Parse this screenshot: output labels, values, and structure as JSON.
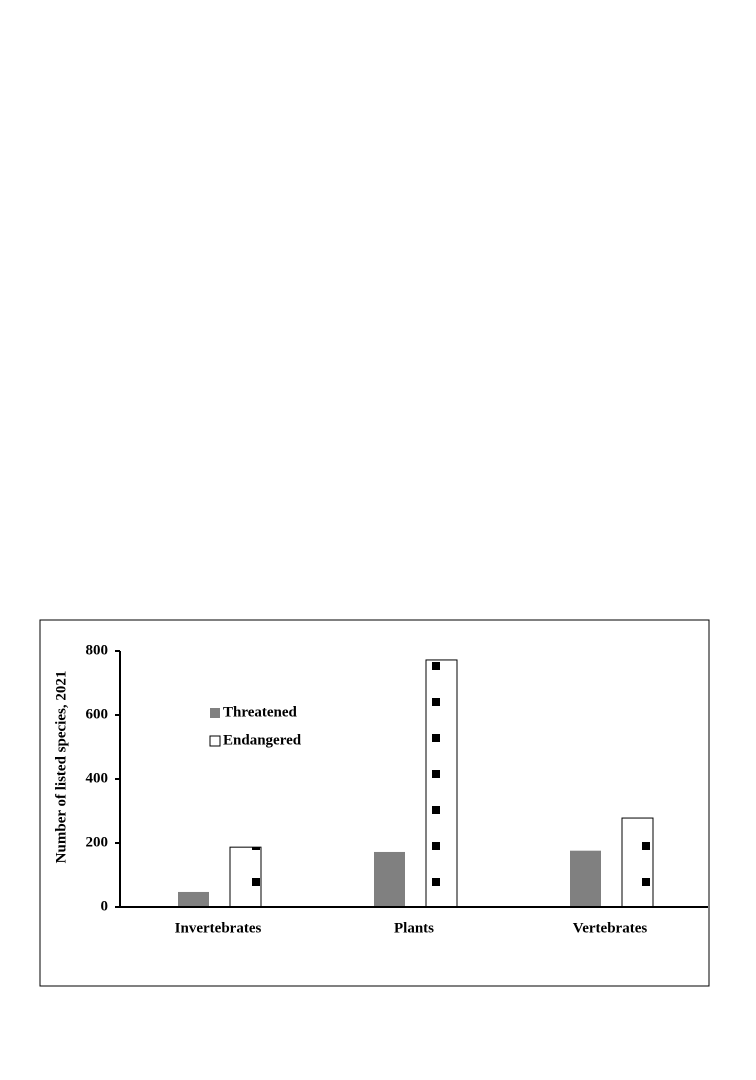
{
  "chart_data": {
    "type": "bar",
    "y_label": "Number of listed species, 2021",
    "categories": [
      "Invertebrates",
      "Plants",
      "Vertebrates"
    ],
    "series": [
      {
        "name": "Threatened",
        "color": "#808080",
        "values": [
          47,
          172,
          176
        ]
      },
      {
        "name": "Endangered",
        "color": "#ffffff",
        "values": [
          187,
          772,
          278
        ]
      }
    ],
    "ylim": [
      0,
      800
    ],
    "yticks": [
      0,
      200,
      400,
      600,
      800
    ],
    "grid": false,
    "legend": "upper left"
  }
}
